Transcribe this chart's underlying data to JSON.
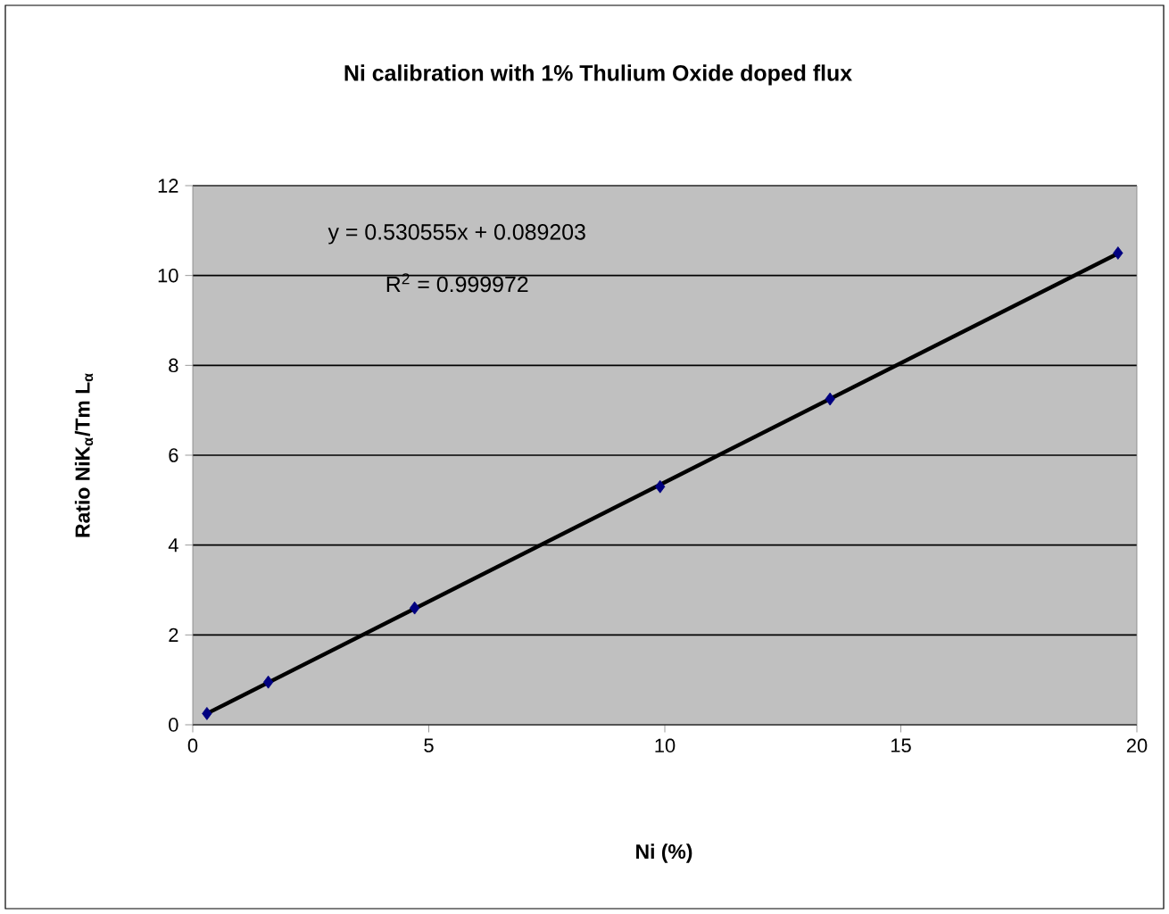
{
  "chart_data": {
    "type": "scatter",
    "title": "Ni calibration with 1% Thulium Oxide doped flux",
    "xlabel": "Ni (%)",
    "ylabel": "Ratio NiK$_{α}$/Tm L$_{α}$",
    "annotations": [
      "y = 0.530555x + 0.089203",
      "R$^{2}$ = 0.999972"
    ],
    "xlim": [
      0,
      20
    ],
    "ylim": [
      0,
      12
    ],
    "xticks": [
      0,
      5,
      10,
      15,
      20
    ],
    "yticks": [
      0,
      2,
      4,
      6,
      8,
      10,
      12
    ],
    "grid": "y",
    "marker": "diamond",
    "series": [
      {
        "type": "line",
        "color": "#000000",
        "x": [
          0.3,
          19.6
        ],
        "values": [
          0.25,
          10.49
        ],
        "marker": "none"
      },
      {
        "color": "#000080",
        "x": [
          0.3,
          1.6,
          4.7,
          9.9,
          13.5,
          19.6
        ],
        "values": [
          0.25,
          0.95,
          2.6,
          5.3,
          7.25,
          10.5
        ]
      }
    ]
  }
}
